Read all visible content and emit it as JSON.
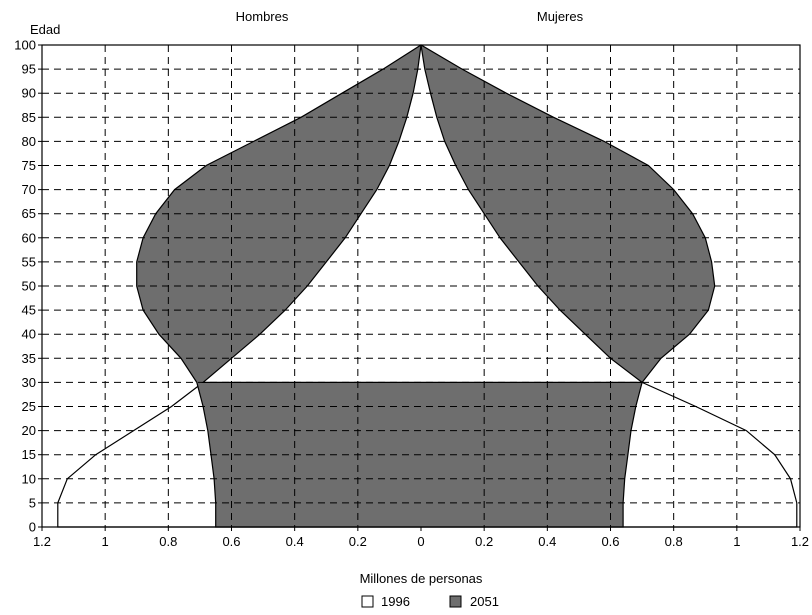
{
  "chart_data": {
    "type": "area",
    "title": "",
    "ylabel": "Edad",
    "xlabel": "Millones de personas",
    "left_title": "Hombres",
    "right_title": "Mujeres",
    "xlim": [
      -1.2,
      1.2
    ],
    "ylim": [
      0,
      100
    ],
    "grid": true,
    "legend_position": "bottom",
    "y_ticks": [
      "0",
      "5",
      "10",
      "15",
      "20",
      "25",
      "30",
      "35",
      "40",
      "45",
      "50",
      "55",
      "60",
      "65",
      "70",
      "75",
      "80",
      "85",
      "90",
      "95",
      "100"
    ],
    "x_ticks": [
      "1.2",
      "1",
      "0.8",
      "0.6",
      "0.4",
      "0.2",
      "0",
      "0.2",
      "0.4",
      "0.6",
      "0.8",
      "1",
      "1.2"
    ],
    "series": [
      {
        "name": "1996",
        "color": "#ffffff",
        "age": [
          0,
          5,
          10,
          15,
          20,
          25,
          30,
          35,
          40,
          45,
          50,
          55,
          60,
          65,
          70,
          75,
          80,
          85,
          90,
          95,
          100
        ],
        "men": [
          1.15,
          1.15,
          1.12,
          1.03,
          0.91,
          0.79,
          0.69,
          0.6,
          0.51,
          0.43,
          0.36,
          0.3,
          0.24,
          0.19,
          0.14,
          0.1,
          0.07,
          0.045,
          0.025,
          0.01,
          0.0
        ],
        "women": [
          1.19,
          1.19,
          1.17,
          1.12,
          1.03,
          0.87,
          0.7,
          0.6,
          0.52,
          0.44,
          0.37,
          0.31,
          0.25,
          0.2,
          0.15,
          0.11,
          0.075,
          0.05,
          0.03,
          0.012,
          0.0
        ]
      },
      {
        "name": "2051",
        "color": "#6e6e6e",
        "age": [
          0,
          5,
          10,
          15,
          20,
          25,
          30,
          35,
          40,
          45,
          50,
          55,
          60,
          65,
          70,
          75,
          80,
          85,
          90,
          95,
          100
        ],
        "men": [
          0.65,
          0.65,
          0.655,
          0.665,
          0.675,
          0.69,
          0.71,
          0.76,
          0.83,
          0.88,
          0.9,
          0.9,
          0.88,
          0.84,
          0.78,
          0.68,
          0.53,
          0.38,
          0.25,
          0.12,
          0.0
        ],
        "women": [
          0.64,
          0.64,
          0.645,
          0.655,
          0.665,
          0.68,
          0.7,
          0.76,
          0.85,
          0.91,
          0.93,
          0.92,
          0.9,
          0.86,
          0.8,
          0.72,
          0.58,
          0.42,
          0.27,
          0.13,
          0.0
        ]
      }
    ]
  }
}
